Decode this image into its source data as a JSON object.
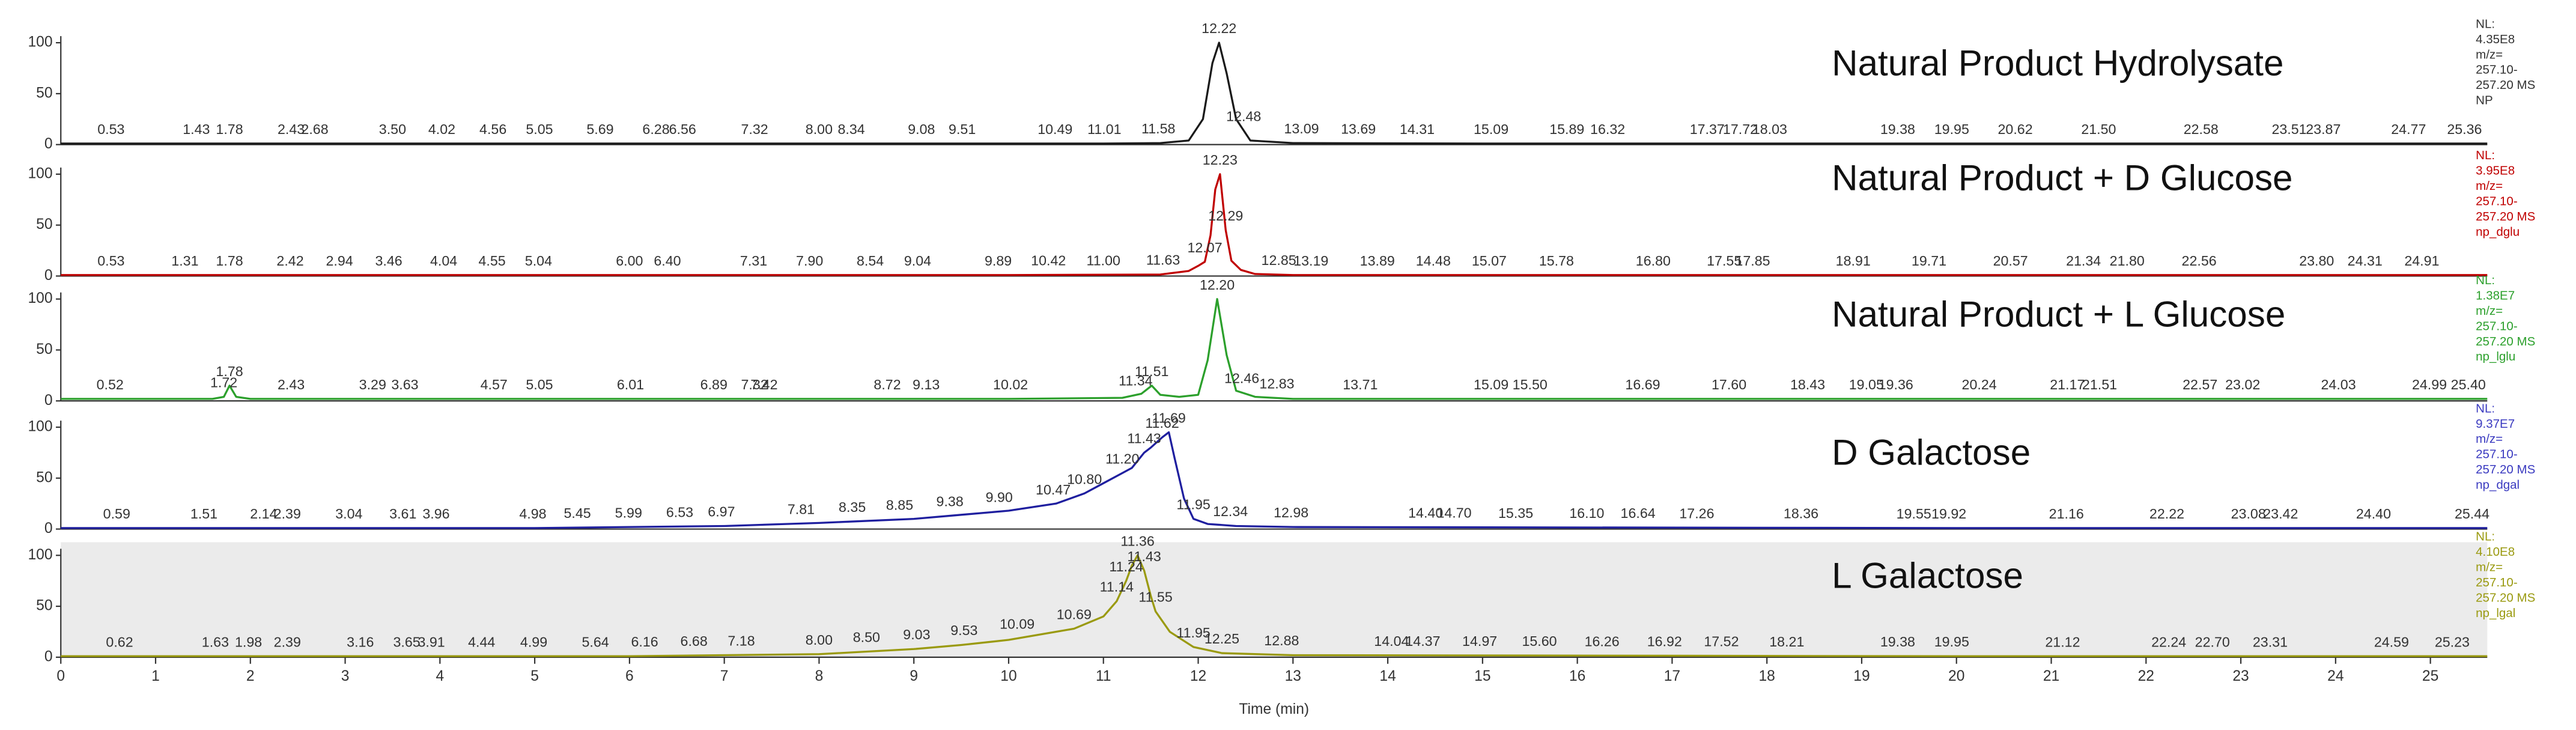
{
  "chart_data": [
    {
      "type": "line",
      "title": "Natural Product Hydrolysate",
      "color": "#1a1a1a",
      "info_color": "#333333",
      "info": [
        "NL:",
        "4.35E8",
        "m/z=",
        "257.10-",
        "257.20 MS",
        "NP"
      ],
      "xlim": [
        0,
        25.6
      ],
      "ylim": [
        0,
        100
      ],
      "yticks": [
        0,
        50,
        100
      ],
      "x": [
        0,
        2,
        4,
        6,
        8,
        10,
        11,
        11.6,
        11.9,
        12.05,
        12.15,
        12.22,
        12.3,
        12.4,
        12.55,
        13,
        15,
        20,
        25.6
      ],
      "values": [
        1,
        1,
        1,
        1,
        1,
        1,
        1,
        1.5,
        4,
        25,
        80,
        100,
        70,
        25,
        4,
        1.5,
        1,
        1,
        1
      ],
      "peaks": [
        0.53,
        1.43,
        1.78,
        2.43,
        2.68,
        {
          "value": 3.5,
          "label": "3.50"
        },
        4.02,
        4.56,
        5.05,
        5.69,
        6.28,
        6.56,
        7.32,
        {
          "value": 8,
          "label": "8.00"
        },
        8.34,
        9.08,
        9.51,
        10.49,
        11.01,
        11.58,
        12.22,
        12.48,
        13.09,
        13.69,
        14.31,
        15.09,
        15.89,
        16.32,
        17.37,
        17.72,
        18.03,
        19.38,
        19.95,
        20.62,
        {
          "value": 21.5,
          "label": "21.50"
        },
        22.58,
        23.51,
        23.87,
        24.77,
        25.36
      ]
    },
    {
      "type": "line",
      "title": "Natural Product + D Glucose",
      "color": "#c00000",
      "info_color": "#c00000",
      "info": [
        "NL:",
        "3.95E8",
        "m/z=",
        "257.10-",
        "257.20 MS",
        "np_dglu"
      ],
      "xlim": [
        0,
        25.6
      ],
      "ylim": [
        0,
        100
      ],
      "yticks": [
        0,
        50,
        100
      ],
      "x": [
        0,
        5,
        10,
        11.6,
        11.9,
        12.0,
        12.07,
        12.13,
        12.18,
        12.23,
        12.29,
        12.35,
        12.45,
        12.6,
        13,
        20,
        25.6
      ],
      "values": [
        1,
        1,
        1,
        1.5,
        5,
        10,
        14,
        40,
        85,
        100,
        45,
        15,
        6,
        2,
        1,
        1,
        1
      ],
      "peaks": [
        0.53,
        1.31,
        1.78,
        2.42,
        2.94,
        3.46,
        4.04,
        4.55,
        5.04,
        {
          "value": 6,
          "label": "6.00"
        },
        {
          "value": 6.4,
          "label": "6.40"
        },
        7.31,
        {
          "value": 7.9,
          "label": "7.90"
        },
        8.54,
        9.04,
        9.89,
        10.42,
        {
          "value": 11,
          "label": "11.00"
        },
        11.63,
        12.07,
        12.23,
        12.29,
        12.85,
        13.19,
        13.89,
        14.48,
        15.07,
        15.78,
        {
          "value": 16.8,
          "label": "16.80"
        },
        17.55,
        17.85,
        18.91,
        19.71,
        20.57,
        21.34,
        {
          "value": 21.8,
          "label": "21.80"
        },
        22.56,
        {
          "value": 23.8,
          "label": "23.80"
        },
        24.31,
        24.91
      ]
    },
    {
      "type": "line",
      "title": "Natural Product + L Glucose",
      "color": "#2ca02c",
      "info_color": "#2ca02c",
      "info": [
        "NL:",
        "1.38E7",
        "m/z=",
        "257.10-",
        "257.20 MS",
        "np_lglu"
      ],
      "xlim": [
        0,
        25.6
      ],
      "ylim": [
        0,
        100
      ],
      "yticks": [
        0,
        50,
        100
      ],
      "x": [
        0,
        1.6,
        1.72,
        1.78,
        1.85,
        2,
        5,
        10,
        11.2,
        11.4,
        11.51,
        11.6,
        11.8,
        12.0,
        12.1,
        12.2,
        12.3,
        12.4,
        12.6,
        13,
        20,
        25.6
      ],
      "values": [
        2,
        2,
        4,
        15,
        4,
        2,
        2,
        2,
        3,
        7,
        15,
        6,
        4,
        6,
        40,
        100,
        45,
        10,
        4,
        2,
        2,
        2
      ],
      "peaks": [
        0.52,
        1.72,
        1.78,
        2.43,
        3.29,
        3.63,
        4.57,
        5.05,
        6.01,
        6.89,
        7.32,
        7.42,
        8.72,
        9.13,
        10.02,
        11.34,
        11.51,
        {
          "value": 12.2,
          "label": "12.20"
        },
        12.46,
        12.83,
        13.71,
        15.09,
        {
          "value": 15.5,
          "label": "15.50"
        },
        16.69,
        {
          "value": 17.6,
          "label": "17.60"
        },
        18.43,
        19.05,
        19.36,
        20.24,
        21.17,
        21.51,
        22.57,
        23.02,
        24.03,
        24.99,
        {
          "value": 25.4,
          "label": "25.40"
        }
      ]
    },
    {
      "type": "line",
      "title": "D Galactose",
      "color": "#1f1f9f",
      "info_color": "#3a3ac0",
      "info": [
        "NL:",
        "9.37E7",
        "m/z=",
        "257.10-",
        "257.20 MS",
        "np_dgal"
      ],
      "xlim": [
        0,
        25.6
      ],
      "ylim": [
        0,
        100
      ],
      "yticks": [
        0,
        50,
        100
      ],
      "x": [
        0,
        5,
        7,
        8,
        9,
        9.5,
        10,
        10.5,
        10.8,
        11,
        11.2,
        11.3,
        11.43,
        11.5,
        11.62,
        11.69,
        11.75,
        11.85,
        11.95,
        12.1,
        12.4,
        13,
        20,
        25.6
      ],
      "values": [
        1,
        1,
        3,
        6,
        10,
        14,
        18,
        25,
        35,
        45,
        55,
        60,
        75,
        80,
        90,
        95,
        70,
        30,
        10,
        5,
        3,
        2,
        1,
        1
      ],
      "peaks": [
        0.59,
        1.51,
        2.14,
        2.39,
        3.04,
        3.61,
        3.96,
        4.98,
        5.45,
        5.99,
        6.53,
        6.97,
        7.81,
        8.35,
        8.85,
        9.38,
        {
          "value": 9.9,
          "label": "9.90"
        },
        10.47,
        {
          "value": 10.8,
          "label": "10.80"
        },
        {
          "value": 11.2,
          "label": "11.20"
        },
        11.43,
        11.62,
        11.69,
        11.95,
        12.34,
        12.98,
        {
          "value": 14.4,
          "label": "14.40"
        },
        {
          "value": 14.7,
          "label": "14.70"
        },
        15.35,
        {
          "value": 16.1,
          "label": "16.10"
        },
        16.64,
        17.26,
        18.36,
        19.55,
        19.92,
        21.16,
        22.22,
        23.08,
        23.42,
        {
          "value": 24.4,
          "label": "24.40"
        },
        25.44
      ]
    },
    {
      "type": "line",
      "title": "L Galactose",
      "color": "#9a9a10",
      "info_color": "#9a9a10",
      "background": "#ebebeb",
      "info": [
        "NL:",
        "4.10E8",
        "m/z=",
        "257.10-",
        "257.20 MS",
        "np_lgal"
      ],
      "xlim": [
        0,
        25.6
      ],
      "ylim": [
        0,
        100
      ],
      "yticks": [
        0,
        50,
        100
      ],
      "xticks": [
        0,
        1,
        2,
        3,
        4,
        5,
        6,
        7,
        8,
        9,
        10,
        11,
        12,
        13,
        14,
        15,
        16,
        17,
        18,
        19,
        20,
        21,
        22,
        23,
        24,
        25
      ],
      "xlabel": "Time (min)",
      "x": [
        0,
        6,
        8,
        9,
        9.5,
        10,
        10.5,
        10.69,
        11,
        11.14,
        11.24,
        11.3,
        11.36,
        11.43,
        11.5,
        11.55,
        11.7,
        11.95,
        12.25,
        13,
        20,
        25.6
      ],
      "values": [
        1,
        1,
        3,
        8,
        12,
        17,
        25,
        28,
        40,
        55,
        75,
        90,
        100,
        85,
        60,
        45,
        25,
        10,
        4,
        2,
        1,
        1
      ],
      "peaks": [
        0.62,
        1.63,
        1.98,
        2.39,
        3.16,
        3.65,
        3.91,
        4.44,
        4.99,
        5.64,
        6.16,
        6.68,
        7.18,
        {
          "value": 8,
          "label": "8.00"
        },
        {
          "value": 8.5,
          "label": "8.50"
        },
        9.03,
        9.53,
        10.09,
        10.69,
        11.14,
        11.24,
        11.36,
        11.43,
        11.55,
        11.95,
        12.25,
        12.88,
        14.04,
        14.37,
        14.97,
        {
          "value": 15.6,
          "label": "15.60"
        },
        16.26,
        16.92,
        17.52,
        18.21,
        19.38,
        19.95,
        21.12,
        22.24,
        {
          "value": 22.7,
          "label": "22.70"
        },
        23.31,
        24.59,
        25.23
      ]
    }
  ]
}
